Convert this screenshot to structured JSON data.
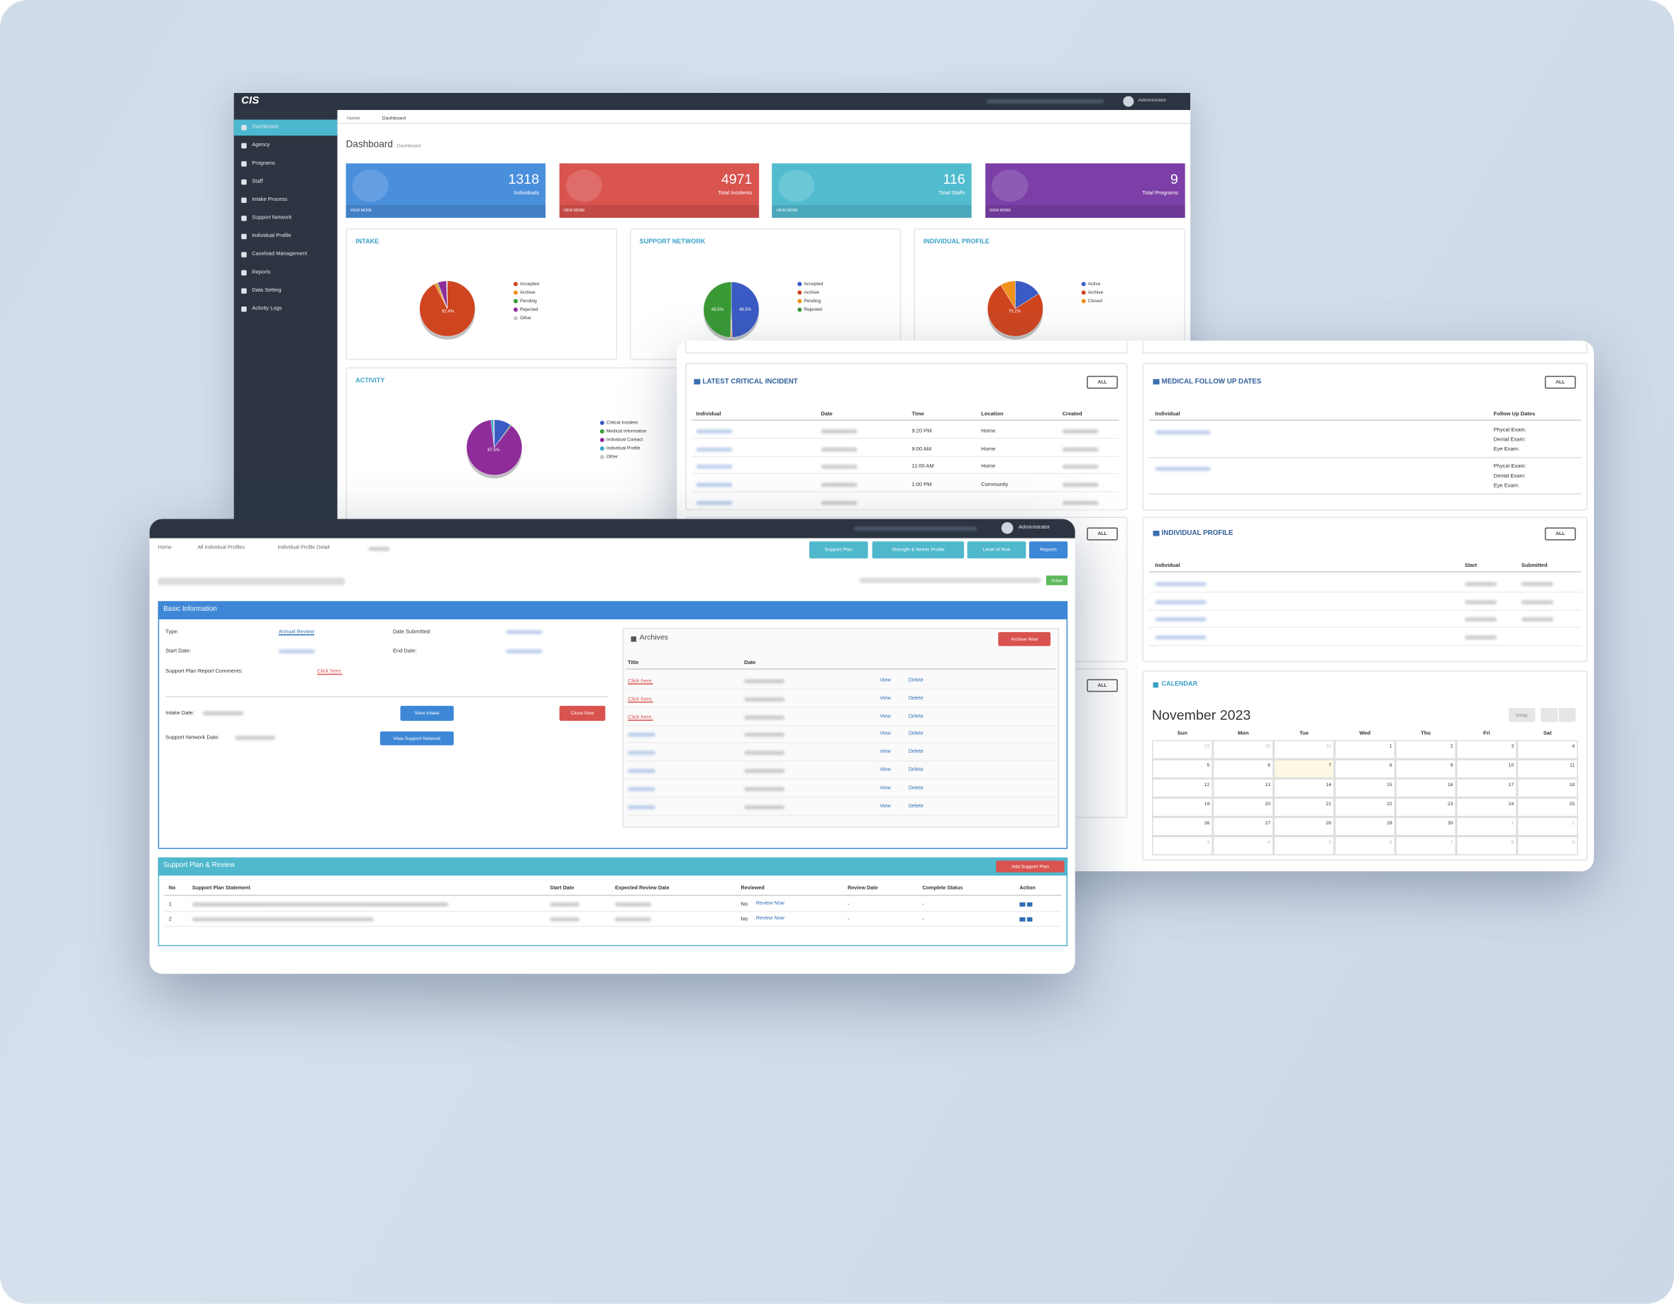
{
  "dashboard": {
    "brand": "CIS",
    "user": "Administrator",
    "menu": [
      "Dashboard",
      "Agency",
      "Programs",
      "Staff",
      "Intake Process",
      "Support Network",
      "Individual Profile",
      "Caseload Management",
      "Reports",
      "Data Setting",
      "Activity Logs"
    ],
    "breadcrumb": [
      "Home",
      "Dashboard"
    ],
    "title": "Dashboard",
    "subtitle": "Dashboard",
    "stats": [
      {
        "value": 1318,
        "label": "Individuals",
        "link": "VIEW MORE",
        "color": "#4a8fdc"
      },
      {
        "value": 4971,
        "label": "Total Incidents",
        "link": "VIEW MORE",
        "color": "#d9534f"
      },
      {
        "value": 116,
        "label": "Total Staffs",
        "link": "VIEW MORE",
        "color": "#52bccf"
      },
      {
        "value": 9,
        "label": "Total Programs",
        "link": "VIEW MORE",
        "color": "#7b3fa7"
      }
    ],
    "charts": [
      {
        "type": "pie",
        "title": "INTAKE",
        "categories": [
          "Accepted",
          "Archive",
          "Pending",
          "Rejected",
          "Other"
        ],
        "colors": [
          "#cf4520",
          "#f0921e",
          "#3a9a36",
          "#8e2c9a",
          "#c8c8c8"
        ],
        "values": [
          92.4,
          1.5,
          0.6,
          5,
          0.5
        ],
        "value_labels": [
          "92.4%",
          null,
          null,
          null,
          null
        ]
      },
      {
        "type": "pie",
        "title": "SUPPORT NETWORK",
        "categories": [
          "Accepted",
          "Archive",
          "Pending",
          "Rejected"
        ],
        "colors": [
          "#3b5bc4",
          "#cf4520",
          "#f0921e",
          "#3a9a36"
        ],
        "values": [
          49.5,
          0.5,
          0.5,
          49.5
        ],
        "value_labels": [
          "49.5%",
          null,
          null,
          "49.5%"
        ]
      },
      {
        "type": "pie",
        "title": "INDIVIDUAL PROFILE",
        "categories": [
          "Active",
          "Archive",
          "Closed"
        ],
        "colors": [
          "#3b5bc4",
          "#cf4520",
          "#f0921e"
        ],
        "values": [
          16,
          75.2,
          8.8
        ],
        "value_labels": [
          null,
          "75.2%",
          null
        ]
      },
      {
        "type": "pie",
        "title": "ACTIVITY",
        "categories": [
          "Critical Incident",
          "Medical Information",
          "Individual Contact",
          "Individual Profile",
          "Other"
        ],
        "colors": [
          "#3b5bc4",
          "#3a9a36",
          "#8e2c9a",
          "#3aa6c8",
          "#c8c8c8"
        ],
        "values": [
          10,
          0.5,
          87.5,
          1.5,
          0.5
        ],
        "value_labels": [
          null,
          null,
          "87.5%",
          null,
          null
        ]
      }
    ]
  },
  "overview": {
    "all": "ALL",
    "incidents": {
      "title": "LATEST CRITICAL INCIDENT",
      "headers": [
        "Individual",
        "Date",
        "Time",
        "Location",
        "Created"
      ],
      "rows": [
        {
          "time": "9:20 PM",
          "location": "Home"
        },
        {
          "time": "9:00 AM",
          "location": "Home"
        },
        {
          "time": "11:00 AM",
          "location": "Home"
        },
        {
          "time": "1:00 PM",
          "location": "Community"
        }
      ]
    },
    "medical": {
      "title": "MEDICAL FOLLOW UP DATES",
      "headers": [
        "Individual",
        "Follow Up Dates"
      ],
      "rows": [
        [
          "Phycal Exam:",
          "Dental Exam:",
          "Eye Exam:"
        ],
        [
          "Phycal Exam:",
          "Dental Exam:",
          "Eye Exam:"
        ]
      ]
    },
    "profiles": {
      "title": "INDIVIDUAL PROFILE",
      "headers": [
        "Individual",
        "Start",
        "Submitted"
      ]
    },
    "calendar": {
      "title": "CALENDAR",
      "month": "November 2023",
      "today": "today",
      "days": [
        "Sun",
        "Mon",
        "Tue",
        "Wed",
        "Thu",
        "Fri",
        "Sat"
      ],
      "weeks": [
        [
          29,
          30,
          31,
          1,
          2,
          3,
          4
        ],
        [
          5,
          6,
          7,
          8,
          9,
          10,
          11
        ],
        [
          12,
          13,
          14,
          15,
          16,
          17,
          18
        ],
        [
          19,
          20,
          21,
          22,
          23,
          24,
          25
        ],
        [
          26,
          27,
          28,
          29,
          30,
          1,
          2
        ],
        [
          3,
          4,
          5,
          6,
          7,
          8,
          9
        ]
      ],
      "highlight": 7
    }
  },
  "profile": {
    "user": "Administrator",
    "breadcrumb": [
      "Home",
      "All Individual Profiles",
      "Individual Profile Detail"
    ],
    "buttons": [
      "Support Plan",
      "Strength & Needs Profile",
      "Level of Risk",
      "Reports"
    ],
    "status": "Active",
    "basic": {
      "title": "Basic Information",
      "type_label": "Type:",
      "type": "Annual Review",
      "submitted_label": "Date Submitted:",
      "start_label": "Start Date:",
      "end_label": "End Date:",
      "comments_label": "Support Plan Report Comments:",
      "comments_link": "Click here.",
      "intake_label": "Intake Date:",
      "view_intake": "View Intake",
      "close_now": "Close Now",
      "network_label": "Support Network Date:",
      "view_network": "View Support Network"
    },
    "archives": {
      "title": "Archives",
      "button": "Archive Now",
      "headers": [
        "Title",
        "Date"
      ],
      "rows": [
        {
          "title": "Click here.",
          "view": "View",
          "delete": "Delete"
        },
        {
          "title": "Click here.",
          "view": "View",
          "delete": "Delete"
        },
        {
          "title": "Click here.",
          "view": "View",
          "delete": "Delete"
        },
        {
          "view": "View",
          "delete": "Delete"
        },
        {
          "view": "View",
          "delete": "Delete"
        },
        {
          "view": "View",
          "delete": "Delete"
        },
        {
          "view": "View",
          "delete": "Delete"
        },
        {
          "view": "View",
          "delete": "Delete"
        }
      ]
    },
    "plan": {
      "title": "Support Plan & Review",
      "button": "Add Support Plan",
      "headers": [
        "No",
        "Support Plan Statement",
        "Start Date",
        "Expected Review Date",
        "Reviewed",
        "Review Date",
        "Complete Status",
        "Action"
      ],
      "rows": [
        {
          "no": 1,
          "reviewed": "No",
          "review": "Review Now",
          "review_date": "-",
          "status": "-"
        },
        {
          "no": 2,
          "reviewed": "No",
          "review": "Review Now",
          "review_date": "-",
          "status": "-"
        }
      ]
    }
  }
}
